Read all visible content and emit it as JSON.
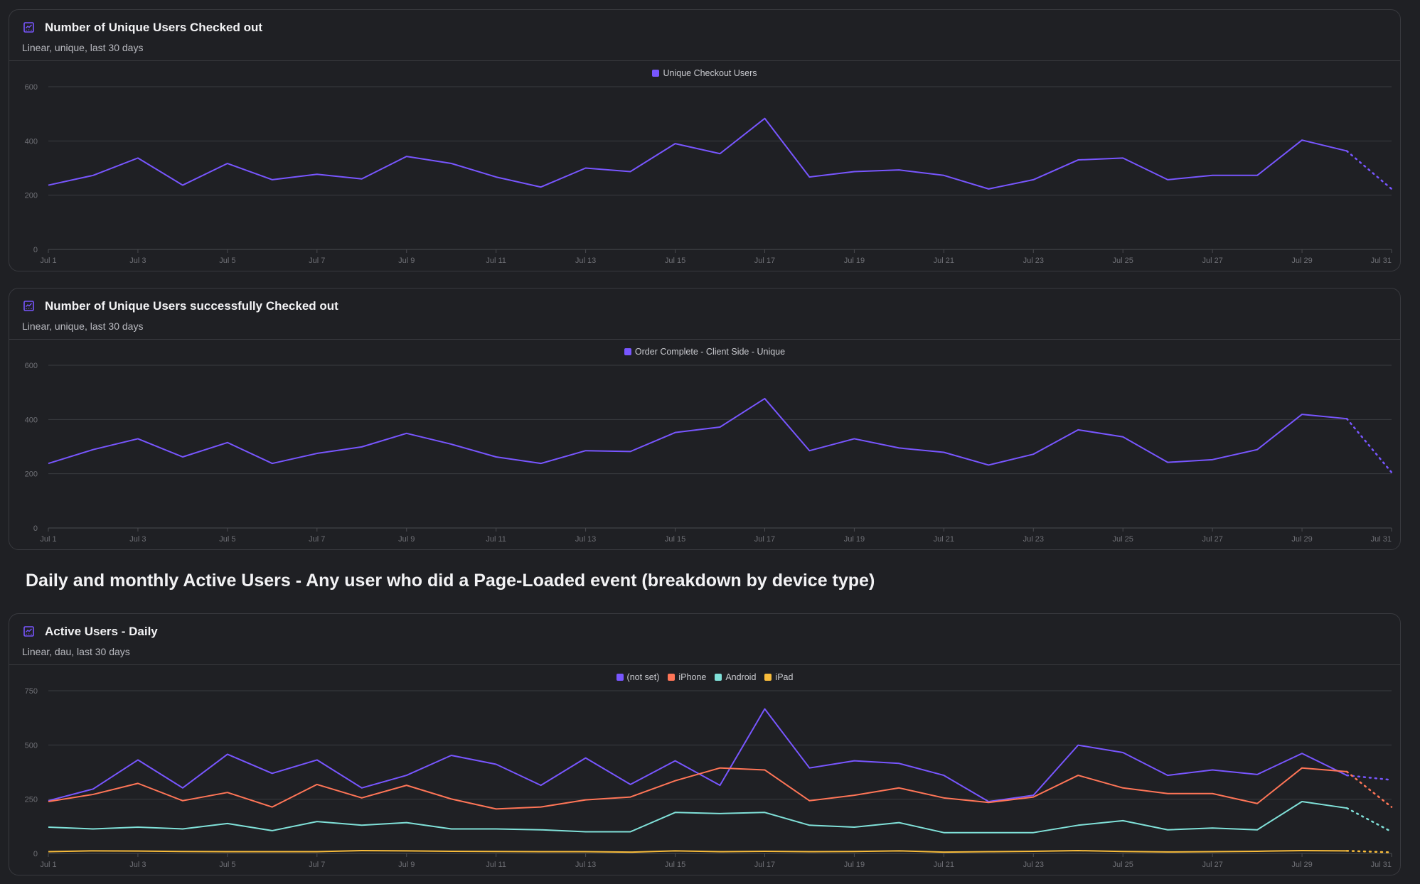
{
  "section_title": "Daily and monthly Active Users - Any user who did a Page-Loaded event (breakdown by device type)",
  "chart_data": [
    {
      "type": "line",
      "title": "Number of Unique Users Checked out",
      "subtitle": "Linear, unique, last 30 days",
      "icon": "line-chart-icon",
      "ylim": [
        0,
        600
      ],
      "yticks": [
        0,
        200,
        400,
        600
      ],
      "grid": true,
      "legend_placement": "top",
      "x": [
        "Jul 1",
        "Jul 2",
        "Jul 3",
        "Jul 4",
        "Jul 5",
        "Jul 6",
        "Jul 7",
        "Jul 8",
        "Jul 9",
        "Jul 10",
        "Jul 11",
        "Jul 12",
        "Jul 13",
        "Jul 14",
        "Jul 15",
        "Jul 16",
        "Jul 17",
        "Jul 18",
        "Jul 19",
        "Jul 20",
        "Jul 21",
        "Jul 22",
        "Jul 23",
        "Jul 24",
        "Jul 25",
        "Jul 26",
        "Jul 27",
        "Jul 28",
        "Jul 29",
        "Jul 30",
        "Jul 31"
      ],
      "xticks": [
        "Jul 1",
        "Jul 3",
        "Jul 5",
        "Jul 7",
        "Jul 9",
        "Jul 11",
        "Jul 13",
        "Jul 15",
        "Jul 17",
        "Jul 19",
        "Jul 21",
        "Jul 23",
        "Jul 25",
        "Jul 27",
        "Jul 29",
        "Jul 31"
      ],
      "series": [
        {
          "name": "Unique Checkout Users",
          "color": "#7856ff",
          "values": [
            237,
            273,
            337,
            237,
            317,
            257,
            277,
            260,
            343,
            317,
            267,
            230,
            300,
            287,
            390,
            353,
            483,
            267,
            287,
            293,
            273,
            223,
            257,
            330,
            337,
            257,
            273,
            273,
            403,
            363,
            223
          ]
        }
      ],
      "incomplete_last_point": true
    },
    {
      "type": "line",
      "title": "Number of Unique Users successfully Checked out",
      "subtitle": "Linear, unique, last 30 days",
      "icon": "line-chart-icon",
      "ylim": [
        0,
        600
      ],
      "yticks": [
        0,
        200,
        400,
        600
      ],
      "grid": true,
      "legend_placement": "top",
      "x": [
        "Jul 1",
        "Jul 2",
        "Jul 3",
        "Jul 4",
        "Jul 5",
        "Jul 6",
        "Jul 7",
        "Jul 8",
        "Jul 9",
        "Jul 10",
        "Jul 11",
        "Jul 12",
        "Jul 13",
        "Jul 14",
        "Jul 15",
        "Jul 16",
        "Jul 17",
        "Jul 18",
        "Jul 19",
        "Jul 20",
        "Jul 21",
        "Jul 22",
        "Jul 23",
        "Jul 24",
        "Jul 25",
        "Jul 26",
        "Jul 27",
        "Jul 28",
        "Jul 29",
        "Jul 30",
        "Jul 31"
      ],
      "xticks": [
        "Jul 1",
        "Jul 3",
        "Jul 5",
        "Jul 7",
        "Jul 9",
        "Jul 11",
        "Jul 13",
        "Jul 15",
        "Jul 17",
        "Jul 19",
        "Jul 21",
        "Jul 23",
        "Jul 25",
        "Jul 27",
        "Jul 29",
        "Jul 31"
      ],
      "series": [
        {
          "name": "Order Complete - Client Side - Unique",
          "color": "#7856ff",
          "values": [
            238,
            289,
            329,
            262,
            315,
            238,
            275,
            299,
            349,
            309,
            262,
            238,
            285,
            282,
            352,
            372,
            477,
            285,
            329,
            295,
            279,
            232,
            272,
            362,
            336,
            242,
            252,
            289,
            419,
            403,
            205
          ]
        }
      ],
      "incomplete_last_point": true
    },
    {
      "type": "line",
      "title": "Active Users - Daily",
      "subtitle": "Linear, dau, last 30 days",
      "icon": "line-chart-icon",
      "ylim": [
        0,
        750
      ],
      "yticks": [
        0,
        250,
        500,
        750
      ],
      "grid": true,
      "legend_placement": "top",
      "x": [
        "Jul 1",
        "Jul 2",
        "Jul 3",
        "Jul 4",
        "Jul 5",
        "Jul 6",
        "Jul 7",
        "Jul 8",
        "Jul 9",
        "Jul 10",
        "Jul 11",
        "Jul 12",
        "Jul 13",
        "Jul 14",
        "Jul 15",
        "Jul 16",
        "Jul 17",
        "Jul 18",
        "Jul 19",
        "Jul 20",
        "Jul 21",
        "Jul 22",
        "Jul 23",
        "Jul 24",
        "Jul 25",
        "Jul 26",
        "Jul 27",
        "Jul 28",
        "Jul 29",
        "Jul 30",
        "Jul 31"
      ],
      "xticks": [
        "Jul 1",
        "Jul 3",
        "Jul 5",
        "Jul 7",
        "Jul 9",
        "Jul 11",
        "Jul 13",
        "Jul 15",
        "Jul 17",
        "Jul 19",
        "Jul 21",
        "Jul 23",
        "Jul 25",
        "Jul 27",
        "Jul 29",
        "Jul 31"
      ],
      "series": [
        {
          "name": "(not set)",
          "color": "#7856ff",
          "values": [
            243,
            297,
            431,
            302,
            457,
            369,
            431,
            302,
            360,
            452,
            411,
            314,
            440,
            318,
            427,
            314,
            666,
            394,
            427,
            415,
            360,
            239,
            268,
            499,
            465,
            360,
            385,
            364,
            461,
            360,
            339
          ]
        },
        {
          "name": "iPhone",
          "color": "#ff7557",
          "values": [
            239,
            272,
            323,
            243,
            281,
            214,
            318,
            256,
            314,
            251,
            205,
            214,
            247,
            260,
            335,
            394,
            385,
            243,
            268,
            302,
            256,
            235,
            260,
            360,
            302,
            276,
            276,
            230,
            394,
            377,
            214
          ]
        },
        {
          "name": "Android",
          "color": "#80e1d9",
          "values": [
            121,
            113,
            121,
            113,
            138,
            105,
            147,
            130,
            142,
            113,
            113,
            109,
            100,
            100,
            189,
            184,
            189,
            130,
            121,
            142,
            96,
            96,
            96,
            130,
            151,
            109,
            117,
            109,
            239,
            209,
            100
          ]
        },
        {
          "name": "iPad",
          "color": "#f8bc3b",
          "values": [
            8,
            12,
            11,
            9,
            8,
            8,
            8,
            13,
            12,
            10,
            9,
            8,
            8,
            6,
            12,
            8,
            10,
            8,
            9,
            12,
            6,
            8,
            10,
            13,
            9,
            7,
            8,
            10,
            13,
            12,
            5
          ]
        }
      ],
      "incomplete_last_point": true
    }
  ]
}
